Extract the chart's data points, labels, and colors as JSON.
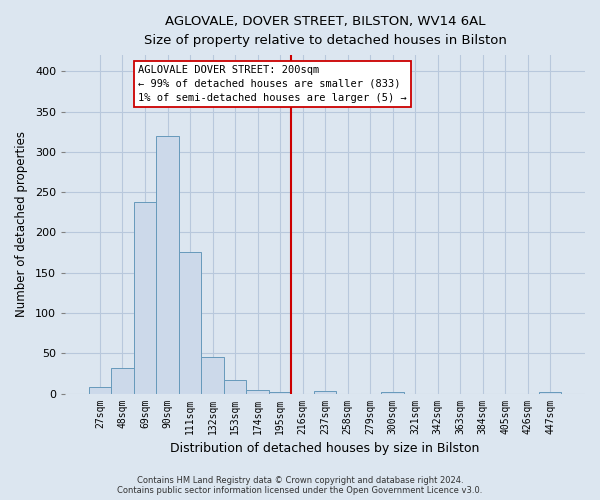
{
  "title": "AGLOVALE, DOVER STREET, BILSTON, WV14 6AL",
  "subtitle": "Size of property relative to detached houses in Bilston",
  "xlabel": "Distribution of detached houses by size in Bilston",
  "ylabel": "Number of detached properties",
  "bar_labels": [
    "27sqm",
    "48sqm",
    "69sqm",
    "90sqm",
    "111sqm",
    "132sqm",
    "153sqm",
    "174sqm",
    "195sqm",
    "216sqm",
    "237sqm",
    "258sqm",
    "279sqm",
    "300sqm",
    "321sqm",
    "342sqm",
    "363sqm",
    "384sqm",
    "405sqm",
    "426sqm",
    "447sqm"
  ],
  "bar_values": [
    8,
    32,
    238,
    320,
    176,
    45,
    17,
    5,
    2,
    0,
    3,
    0,
    0,
    2,
    0,
    0,
    0,
    0,
    0,
    0,
    2
  ],
  "bar_color": "#ccd9ea",
  "bar_edge_color": "#6699bb",
  "vline_color": "#cc0000",
  "annotation_text": "AGLOVALE DOVER STREET: 200sqm\n← 99% of detached houses are smaller (833)\n1% of semi-detached houses are larger (5) →",
  "ylim": [
    0,
    420
  ],
  "background_color": "#dce6f0",
  "plot_bg_color": "#dce6f0",
  "grid_color": "#b8c8dc",
  "footer_line1": "Contains HM Land Registry data © Crown copyright and database right 2024.",
  "footer_line2": "Contains public sector information licensed under the Open Government Licence v3.0."
}
